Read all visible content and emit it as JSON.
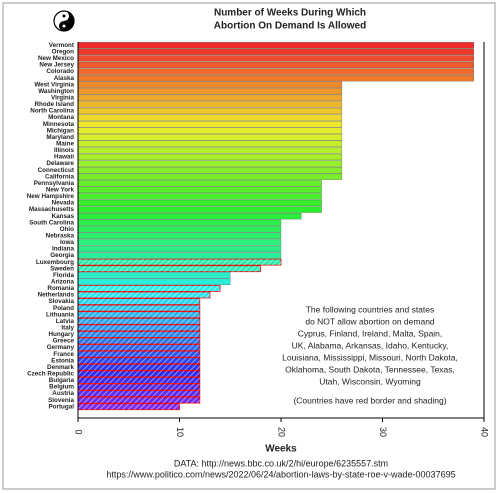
{
  "chart_data": {
    "type": "barh",
    "title": [
      "Number of Weeks During Which",
      "Abortion On Demand Is Allowed"
    ],
    "x_label": "Weeks",
    "categories": [
      "Vermont",
      "Oregon",
      "New Mexico",
      "New Jersey",
      "Colorado",
      "Alaska",
      "West Virginia",
      "Washington",
      "Virginia",
      "Rhode Island",
      "North Carolina",
      "Montana",
      "Minnesota",
      "Michigan",
      "Maryland",
      "Maine",
      "Illinois",
      "Hawaii",
      "Delaware",
      "Connecticut",
      "California",
      "Pennsylvania",
      "New York",
      "New Hampshire",
      "Nevada",
      "Massachusetts",
      "Kansas",
      "South Carolina",
      "Ohio",
      "Nebraska",
      "Iowa",
      "Indiana",
      "Georgia",
      "Luxembourg",
      "Sweden",
      "Florida",
      "Arizona",
      "Romania",
      "Netherlands",
      "Slovakia",
      "Poland",
      "Lithuania",
      "Latvia",
      "Italy",
      "Hungary",
      "Greece",
      "Germany",
      "France",
      "Estonia",
      "Denmark",
      "Czech Republic",
      "Bulgaria",
      "Belgium",
      "Austria",
      "Slovenia",
      "Portugal"
    ],
    "values": [
      39,
      39,
      39,
      39,
      39,
      39,
      26,
      26,
      26,
      26,
      26,
      26,
      26,
      26,
      26,
      26,
      26,
      26,
      26,
      26,
      26,
      24,
      24,
      24,
      24,
      24,
      22,
      20,
      20,
      20,
      20,
      20,
      20,
      20,
      18,
      15,
      15,
      14,
      13,
      12,
      12,
      12,
      12,
      12,
      12,
      12,
      12,
      12,
      12,
      12,
      12,
      12,
      12,
      12,
      12,
      10
    ],
    "red_border": [
      false,
      false,
      false,
      false,
      false,
      false,
      false,
      false,
      false,
      false,
      false,
      false,
      false,
      false,
      false,
      false,
      false,
      false,
      false,
      false,
      false,
      false,
      false,
      false,
      false,
      false,
      false,
      false,
      false,
      false,
      false,
      false,
      false,
      true,
      true,
      false,
      false,
      true,
      true,
      true,
      true,
      true,
      true,
      true,
      true,
      true,
      true,
      true,
      true,
      true,
      true,
      true,
      true,
      true,
      true,
      true
    ],
    "xlim": [
      0,
      40
    ],
    "xticks": [
      0,
      10,
      20,
      30,
      40
    ],
    "annotation": [
      "The following countries and states",
      "do NOT allow abortion on demand",
      "Cyprus, Finland, Ireland, Malta, Spain,",
      "UK, Alabama, Arkansas, Idaho, Kentucky,",
      "Louisiana, Mississippi, Missouri, North Dakota,",
      "Oklahoma, South Dakota, Tennessee, Texas,",
      "Utah, Wisconsin, Wyoming"
    ],
    "note": "(Countries have red border and shading)",
    "source": [
      "DATA: http://news.bbc.co.uk/2/hi/europe/6235557.stm",
      "https://www.politico.com/news/2022/06/24/abortion-laws-by-state-roe-v-wade-00037695"
    ]
  }
}
